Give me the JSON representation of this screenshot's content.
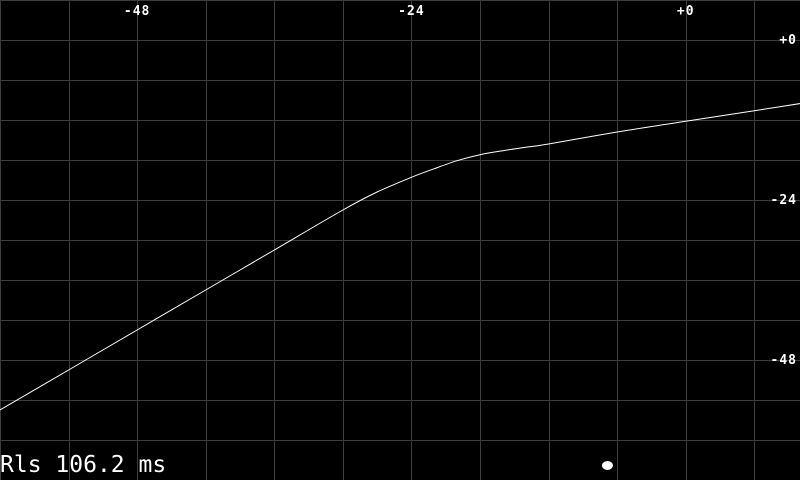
{
  "readout": {
    "label": "Rls",
    "value": "106.2",
    "unit": "ms"
  },
  "indicator": {
    "icon": "dot-indicator-icon",
    "color": "#ffffff"
  },
  "chart_data": {
    "type": "line",
    "x_axis": {
      "range": [
        -60,
        10
      ],
      "tick_values": [
        -48,
        -24,
        0
      ],
      "tick_labels": [
        "-48",
        "-24",
        "+0"
      ],
      "position": "top"
    },
    "y_axis": {
      "range": [
        -66,
        6
      ],
      "tick_values": [
        0,
        -24,
        -48
      ],
      "tick_labels": [
        "+0",
        "-24",
        "-48"
      ],
      "position": "right"
    },
    "grid": true,
    "grid_step": 6,
    "series": [
      {
        "color": "#ffffff",
        "x": [
          -60,
          -54,
          -48,
          -42,
          -36,
          -30,
          -27,
          -24,
          -22,
          -20,
          -18,
          -16,
          -14,
          -12,
          -6,
          0,
          6,
          12
        ],
        "y": [
          -55.5,
          -49.5,
          -43.5,
          -37.5,
          -31.5,
          -25.5,
          -22.8,
          -20.6,
          -19.3,
          -18.1,
          -17.2,
          -16.6,
          -16.1,
          -15.6,
          -13.8,
          -12.2,
          -10.6,
          -9.0
        ]
      }
    ]
  }
}
